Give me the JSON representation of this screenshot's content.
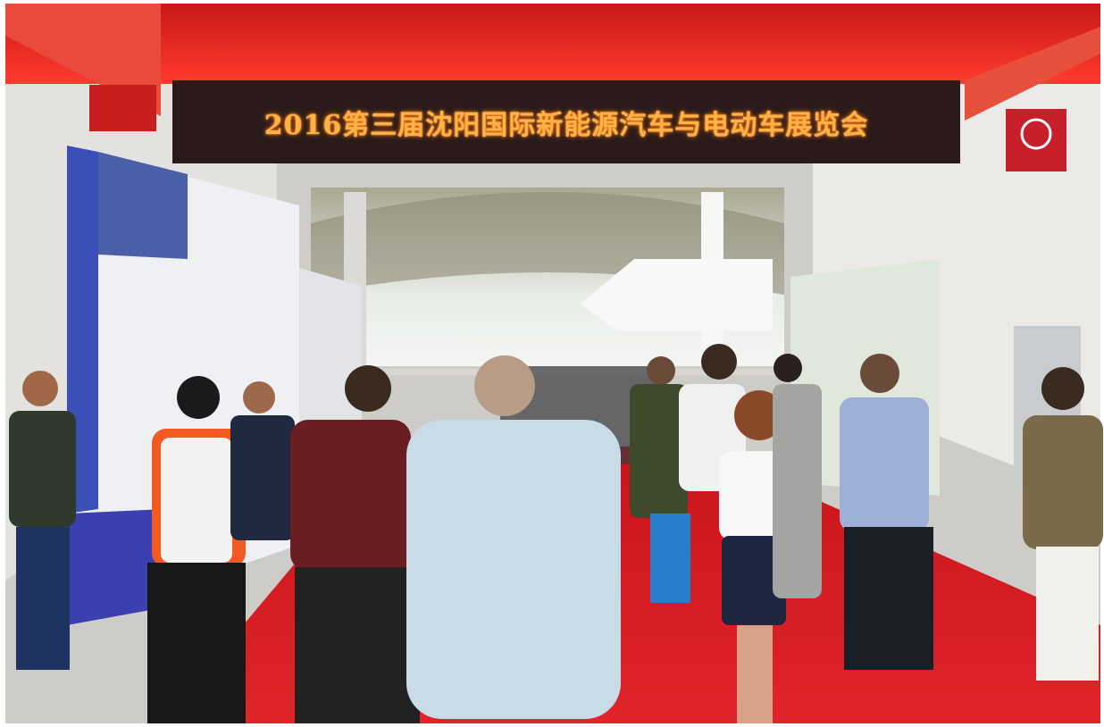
{
  "sign": {
    "text": "2016第三届沈阳国际新能源汽车与电动车展览会"
  }
}
